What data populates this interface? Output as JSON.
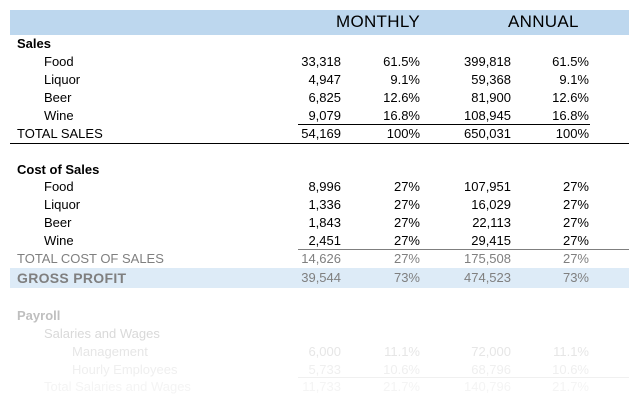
{
  "header": {
    "monthly": "MONTHLY",
    "annual": "ANNUAL"
  },
  "sales": {
    "title": "Sales",
    "items": [
      {
        "label": "Food",
        "monthly": "33,318",
        "monthly_pct": "61.5%",
        "annual": "399,818",
        "annual_pct": "61.5%"
      },
      {
        "label": "Liquor",
        "monthly": "4,947",
        "monthly_pct": "9.1%",
        "annual": "59,368",
        "annual_pct": "9.1%"
      },
      {
        "label": "Beer",
        "monthly": "6,825",
        "monthly_pct": "12.6%",
        "annual": "81,900",
        "annual_pct": "12.6%"
      },
      {
        "label": "Wine",
        "monthly": "9,079",
        "monthly_pct": "16.8%",
        "annual": "108,945",
        "annual_pct": "16.8%"
      }
    ],
    "total": {
      "label": "TOTAL SALES",
      "monthly": "54,169",
      "monthly_pct": "100%",
      "annual": "650,031",
      "annual_pct": "100%"
    }
  },
  "cost_of_sales": {
    "title": "Cost of Sales",
    "items": [
      {
        "label": "Food",
        "monthly": "8,996",
        "monthly_pct": "27%",
        "annual": "107,951",
        "annual_pct": "27%"
      },
      {
        "label": "Liquor",
        "monthly": "1,336",
        "monthly_pct": "27%",
        "annual": "16,029",
        "annual_pct": "27%"
      },
      {
        "label": "Beer",
        "monthly": "1,843",
        "monthly_pct": "27%",
        "annual": "22,113",
        "annual_pct": "27%"
      },
      {
        "label": "Wine",
        "monthly": "2,451",
        "monthly_pct": "27%",
        "annual": "29,415",
        "annual_pct": "27%"
      }
    ],
    "total": {
      "label": "TOTAL COST OF SALES",
      "monthly": "14,626",
      "monthly_pct": "27%",
      "annual": "175,508",
      "annual_pct": "27%"
    }
  },
  "gross_profit": {
    "label": "GROSS PROFIT",
    "monthly": "39,544",
    "monthly_pct": "73%",
    "annual": "474,523",
    "annual_pct": "73%"
  },
  "payroll": {
    "title": "Payroll",
    "subtitle": "Salaries and Wages",
    "items": [
      {
        "label": "Management",
        "monthly": "6,000",
        "monthly_pct": "11.1%",
        "annual": "72,000",
        "annual_pct": "11.1%"
      },
      {
        "label": "Hourly Employees",
        "monthly": "5,733",
        "monthly_pct": "10.6%",
        "annual": "68,796",
        "annual_pct": "10.6%"
      }
    ],
    "total": {
      "label": "Total Salaries and Wages",
      "monthly": "11,733",
      "monthly_pct": "21.7%",
      "annual": "140,796",
      "annual_pct": "21.7%"
    }
  }
}
